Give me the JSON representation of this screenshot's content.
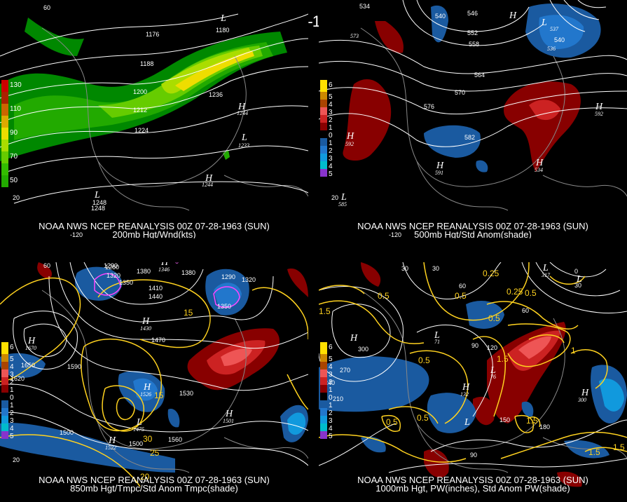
{
  "title": "00Z 07-28-1963 (SUN)",
  "panels": [
    {
      "caption1": "NOAA NWS NCEP REANALYSIS 00Z 07-28-1963 (SUN)",
      "caption2": "200mb Hgt/Wnd(kts)",
      "legend": [
        {
          "label": "130",
          "color": "#cc0000"
        },
        {
          "label": "",
          "color": "#aa2200"
        },
        {
          "label": "110",
          "color": "#cc6600"
        },
        {
          "label": "",
          "color": "#ddaa00"
        },
        {
          "label": "90",
          "color": "#eedd00"
        },
        {
          "label": "",
          "color": "#aadd00"
        },
        {
          "label": "70",
          "color": "#66cc00"
        },
        {
          "label": "",
          "color": "#33bb00"
        },
        {
          "label": "50",
          "color": "#22aa00"
        },
        {
          "label": "",
          "color": "#119900"
        },
        {
          "label": "30",
          "color": "#008800"
        }
      ],
      "contour_labels": [
        "1176",
        "1188",
        "1200",
        "1212",
        "1224",
        "1236",
        "1248",
        "1248",
        "1244",
        "1236",
        "1180"
      ],
      "centers": [
        "H",
        "H",
        "L",
        "L",
        "H",
        "L"
      ],
      "small_labels": [
        "1244",
        "1233",
        "1244",
        "1248"
      ],
      "lat_labels": [
        "60",
        "20"
      ],
      "lon_labels": [
        "-120"
      ]
    },
    {
      "caption1": "NOAA NWS NCEP REANALYSIS 00Z 07-28-1963 (SUN)",
      "caption2": "500mb Hgt/Std Anom(shade)",
      "legend": [
        {
          "label": "6",
          "color": "#ffe000"
        },
        {
          "label": "5",
          "color": "#cc8800"
        },
        {
          "label": "4",
          "color": "#aa4400"
        },
        {
          "label": "3",
          "color": "#ee5555"
        },
        {
          "label": "2",
          "color": "#cc2222"
        },
        {
          "label": "1",
          "color": "#880000"
        },
        {
          "label": "0",
          "color": "#000000"
        },
        {
          "label": "1",
          "color": "#1a5aa0"
        },
        {
          "label": "2",
          "color": "#2277cc"
        },
        {
          "label": "3",
          "color": "#1199dd"
        },
        {
          "label": "4",
          "color": "#00bbcc"
        },
        {
          "label": "5",
          "color": "#8833cc"
        }
      ],
      "contour_labels": [
        "534",
        "540",
        "546",
        "552",
        "558",
        "564",
        "570",
        "576",
        "582",
        "537",
        "540",
        "536",
        "573"
      ],
      "centers": [
        "H",
        "L",
        "H",
        "H",
        "H",
        "L",
        "H",
        "L"
      ],
      "small_labels": [
        "592",
        "592",
        "591",
        "534",
        "585",
        "546"
      ],
      "lat_labels": [
        "20"
      ],
      "lon_labels": [
        "-120"
      ]
    },
    {
      "caption1": "NOAA NWS NCEP REANALYSIS 00Z 07-28-1963 (SUN)",
      "caption2": "850mb Hgt/Tmpc/Std Anom Tmpc(shade)",
      "legend": [
        {
          "label": "6",
          "color": "#ffe000"
        },
        {
          "label": "5",
          "color": "#cc8800"
        },
        {
          "label": "4",
          "color": "#aa4400"
        },
        {
          "label": "3",
          "color": "#ee5555"
        },
        {
          "label": "2",
          "color": "#cc2222"
        },
        {
          "label": "1",
          "color": "#880000"
        },
        {
          "label": "0",
          "color": "#000000"
        },
        {
          "label": "1",
          "color": "#1a5aa0"
        },
        {
          "label": "2",
          "color": "#2277cc"
        },
        {
          "label": "3",
          "color": "#1199dd"
        },
        {
          "label": "4",
          "color": "#00bbcc"
        },
        {
          "label": "5",
          "color": "#8833cc"
        }
      ],
      "contour_labels": [
        "1260",
        "1290",
        "1320",
        "1350",
        "1380",
        "1410",
        "1440",
        "1470",
        "1530",
        "1560",
        "1590",
        "1620",
        "1650",
        "1500",
        "1500",
        "1380",
        "1320",
        "1350",
        "1290",
        "1560",
        "1530"
      ],
      "yellow_labels": [
        "15",
        "15",
        "25",
        "30",
        "20",
        "5",
        "0"
      ],
      "centers": [
        "H",
        "H",
        "H",
        "L",
        "H",
        "H",
        "H",
        "H"
      ],
      "small_labels": [
        "1670",
        "1526",
        "1475",
        "1522",
        "1501",
        "1430",
        "1346"
      ],
      "lat_labels": [
        "60",
        "20"
      ],
      "lon_labels": [
        "-120"
      ]
    },
    {
      "caption1": "NOAA NWS NCEP REANALYSIS 00Z 07-28-1963 (SUN)",
      "caption2": "1000mb Hgt, PW(inches), Std Anom PW(shade)",
      "legend": [
        {
          "label": "6",
          "color": "#ffe000"
        },
        {
          "label": "5",
          "color": "#cc8800"
        },
        {
          "label": "4",
          "color": "#aa4400"
        },
        {
          "label": "3",
          "color": "#ee5555"
        },
        {
          "label": "2",
          "color": "#cc2222"
        },
        {
          "label": "1",
          "color": "#880000"
        },
        {
          "label": "0",
          "color": "#000000"
        },
        {
          "label": "1",
          "color": "#1a5aa0"
        },
        {
          "label": "2",
          "color": "#2277cc"
        },
        {
          "label": "3",
          "color": "#1199dd"
        },
        {
          "label": "4",
          "color": "#00bbcc"
        },
        {
          "label": "5",
          "color": "#8833cc"
        }
      ],
      "contour_labels": [
        "30",
        "60",
        "90",
        "120",
        "150",
        "180",
        "210",
        "240",
        "270",
        "300",
        "60",
        "30",
        "30",
        "0",
        "90",
        "120",
        "150",
        "180",
        "90"
      ],
      "yellow_labels": [
        "0.25",
        "0.25",
        "0.5",
        "0.5",
        "1.5",
        "1.5",
        "0.5",
        "0.5",
        "0.5",
        "1.5",
        "1.5",
        "0.5",
        "1.5",
        "1",
        "0.5"
      ],
      "centers": [
        "H",
        "L",
        "L",
        "H",
        "L",
        "L",
        "H",
        "L",
        "H",
        "H",
        "L"
      ],
      "small_labels": [
        "317",
        "71",
        "76",
        "132",
        "300"
      ],
      "lat_labels": [],
      "lon_labels": [
        "-120"
      ]
    }
  ]
}
